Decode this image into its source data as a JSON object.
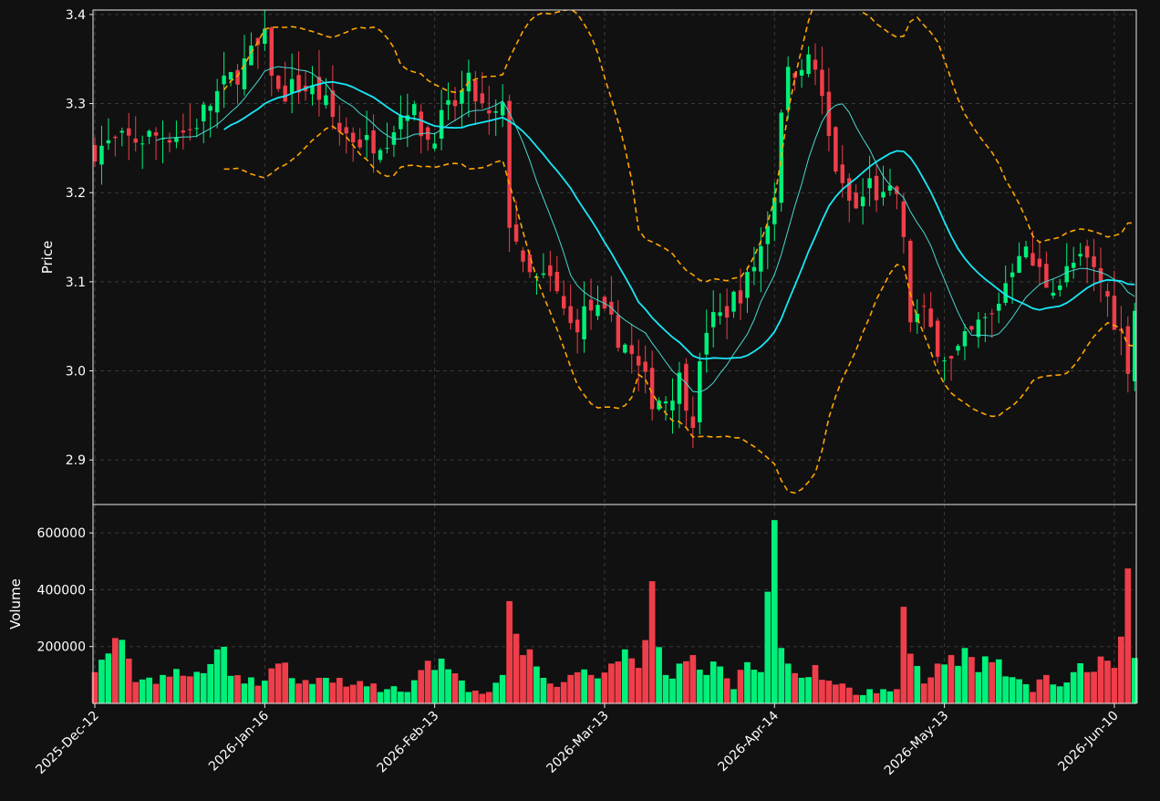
{
  "theme": {
    "background": "#111111",
    "frame": "#e6e6e6",
    "grid": "#3a3a3a",
    "text": "#ffffff",
    "up": "#00f07a",
    "down": "#ef3e4a",
    "bollinger": "#ffa500",
    "ma_long": "#18e8f6",
    "ma_short": "#48d8d0"
  },
  "chart_data": {
    "type": "candlestick",
    "price_axis": {
      "label": "Price",
      "ylim": [
        2.85,
        3.405
      ],
      "ticks": [
        2.9,
        3.0,
        3.1,
        3.2,
        3.3,
        3.4
      ],
      "tick_labels": [
        "2.9",
        "3.0",
        "3.1",
        "3.2",
        "3.3",
        "3.4"
      ]
    },
    "volume_axis": {
      "label": "Volume",
      "ylim": [
        0,
        700000
      ],
      "ticks": [
        200000,
        400000,
        600000
      ],
      "tick_labels": [
        "200000",
        "400000",
        "600000"
      ]
    },
    "x_ticks": [
      {
        "label": "2025-Dec-12",
        "index": 0
      },
      {
        "label": "2026-Jan-16",
        "index": 25
      },
      {
        "label": "2026-Feb-13",
        "index": 50
      },
      {
        "label": "2026-Mar-13",
        "index": 75
      },
      {
        "label": "2026-Apr-14",
        "index": 100
      },
      {
        "label": "2026-May-13",
        "index": 125
      },
      {
        "label": "2026-Jun-10",
        "index": 150
      }
    ],
    "num_bars": 154,
    "grid": true,
    "keyframes": [
      [
        0,
        3.25,
        0.11
      ],
      [
        3,
        3.255,
        0.23
      ],
      [
        6,
        3.26,
        0.075
      ],
      [
        10,
        3.265,
        0.1
      ],
      [
        14,
        3.27,
        0.095
      ],
      [
        18,
        3.31,
        0.19
      ],
      [
        22,
        3.345,
        0.07
      ],
      [
        25,
        3.37,
        0.08
      ],
      [
        27,
        3.31,
        0.14
      ],
      [
        30,
        3.32,
        0.07
      ],
      [
        33,
        3.31,
        0.09
      ],
      [
        36,
        3.27,
        0.09
      ],
      [
        40,
        3.255,
        0.06
      ],
      [
        43,
        3.265,
        0.05
      ],
      [
        46,
        3.3,
        0.04
      ],
      [
        49,
        3.26,
        0.15
      ],
      [
        52,
        3.29,
        0.12
      ],
      [
        55,
        3.32,
        0.04
      ],
      [
        58,
        3.28,
        0.04
      ],
      [
        60,
        3.29,
        0.1
      ],
      [
        61,
        3.17,
        0.36
      ],
      [
        62,
        3.15,
        0.245
      ],
      [
        63,
        3.11,
        0.17
      ],
      [
        65,
        3.1,
        0.13
      ],
      [
        67,
        3.1,
        0.07
      ],
      [
        70,
        3.05,
        0.1
      ],
      [
        73,
        3.07,
        0.1
      ],
      [
        76,
        3.05,
        0.14
      ],
      [
        78,
        3.03,
        0.19
      ],
      [
        80,
        3.0,
        0.125
      ],
      [
        82,
        2.97,
        0.43
      ],
      [
        84,
        2.97,
        0.1
      ],
      [
        86,
        2.99,
        0.14
      ],
      [
        88,
        2.95,
        0.17
      ],
      [
        90,
        3.05,
        0.1
      ],
      [
        92,
        3.06,
        0.13
      ],
      [
        94,
        3.08,
        0.05
      ],
      [
        96,
        3.1,
        0.145
      ],
      [
        98,
        3.14,
        0.11
      ],
      [
        100,
        3.2,
        0.645
      ],
      [
        101,
        3.3,
        0.195
      ],
      [
        102,
        3.33,
        0.14
      ],
      [
        104,
        3.35,
        0.09
      ],
      [
        106,
        3.34,
        0.135
      ],
      [
        108,
        3.26,
        0.08
      ],
      [
        110,
        3.2,
        0.07
      ],
      [
        112,
        3.18,
        0.03
      ],
      [
        114,
        3.21,
        0.05
      ],
      [
        116,
        3.19,
        0.05
      ],
      [
        118,
        3.2,
        0.05
      ],
      [
        119,
        3.14,
        0.34
      ],
      [
        120,
        3.06,
        0.175
      ],
      [
        122,
        3.06,
        0.07
      ],
      [
        124,
        3.03,
        0.14
      ],
      [
        126,
        3.01,
        0.17
      ],
      [
        128,
        3.03,
        0.195
      ],
      [
        130,
        3.05,
        0.11
      ],
      [
        132,
        3.06,
        0.145
      ],
      [
        134,
        3.1,
        0.095
      ],
      [
        136,
        3.14,
        0.085
      ],
      [
        138,
        3.12,
        0.04
      ],
      [
        140,
        3.1,
        0.1
      ],
      [
        142,
        3.1,
        0.06
      ],
      [
        144,
        3.12,
        0.11
      ],
      [
        146,
        3.12,
        0.11
      ],
      [
        148,
        3.1,
        0.165
      ],
      [
        150,
        3.06,
        0.125
      ],
      [
        151,
        3.04,
        0.235
      ],
      [
        152,
        3.01,
        0.475
      ],
      [
        153,
        3.07,
        0.16
      ]
    ],
    "bollinger_period": 20,
    "ma_long_period": 20,
    "ma_short_period": 10
  }
}
